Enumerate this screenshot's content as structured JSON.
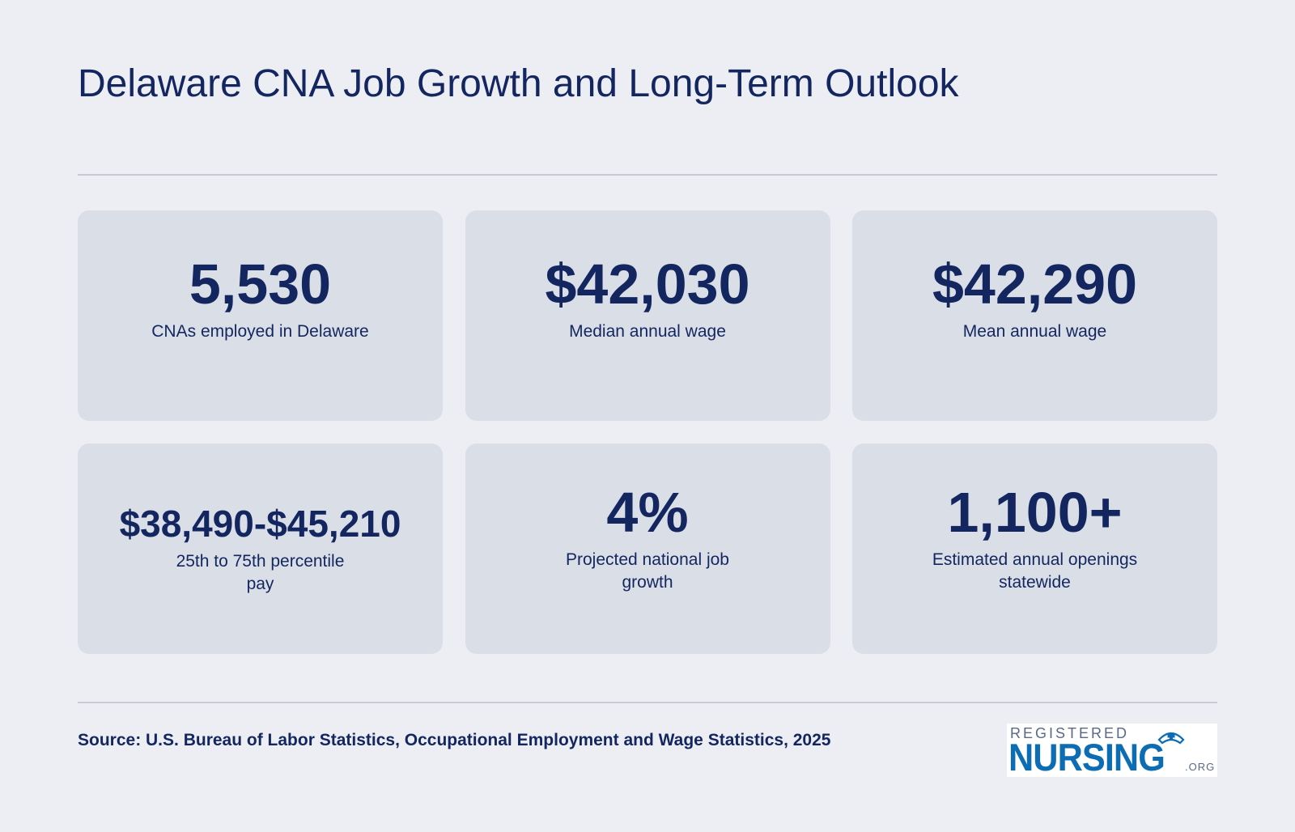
{
  "title": "Delaware CNA Job Growth and Long-Term Outlook",
  "stats": [
    {
      "value": "5,530",
      "label": "CNAs employed in Delaware"
    },
    {
      "value": "$42,030",
      "label": "Median annual wage"
    },
    {
      "value": "$42,290",
      "label": "Mean annual wage"
    },
    {
      "value": "$38,490-$45,210",
      "label": "25th to 75th percentile pay"
    },
    {
      "value": "4%",
      "label": "Projected national job growth"
    },
    {
      "value": "1,100+",
      "label": "Estimated annual openings statewide"
    }
  ],
  "source": "Source: U.S. Bureau of Labor Statistics, Occupational Employment and Wage Statistics, 2025",
  "logo": {
    "top_text": "REGISTERED",
    "main_text": "NURSING",
    "suffix": ".ORG"
  },
  "colors": {
    "background": "#edeef3",
    "card": "#dadee7",
    "text": "#13265f",
    "logo_blue": "#0d6db4"
  }
}
